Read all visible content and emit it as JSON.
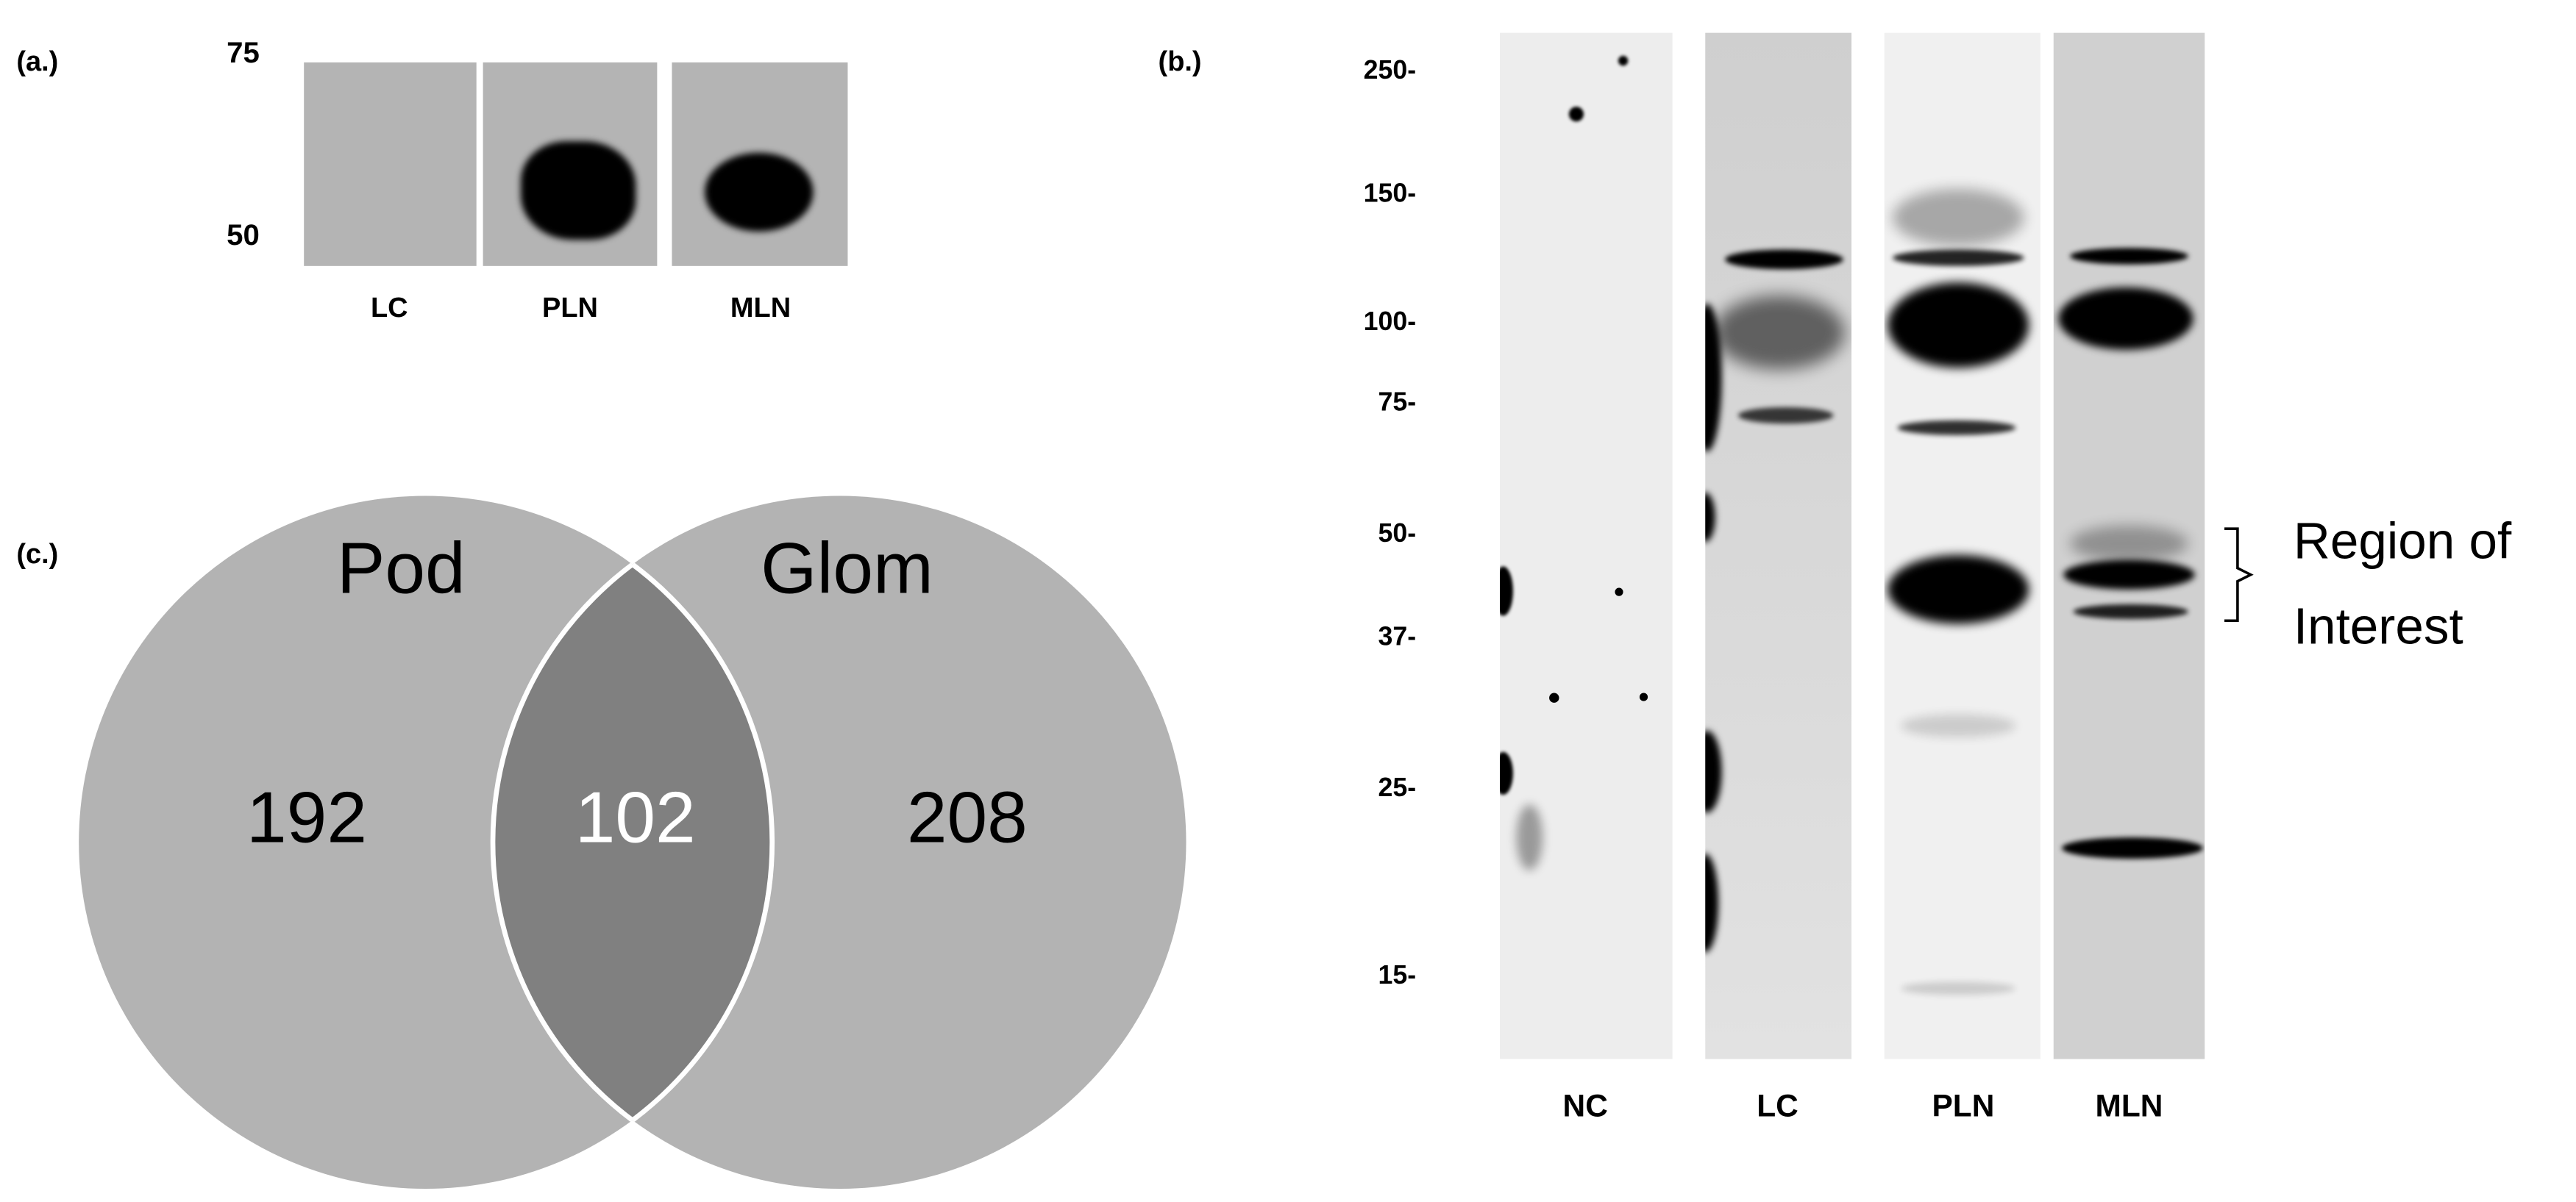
{
  "panel_a": {
    "label": "(a.)",
    "markers": [
      "75",
      "50"
    ],
    "lanes": [
      "LC",
      "PLN",
      "MLN"
    ]
  },
  "panel_b": {
    "label": "(b.)",
    "markers": [
      "250-",
      "150-",
      "100-",
      "75-",
      "50-",
      "37-",
      "25-",
      "15-"
    ],
    "lanes": [
      "NC",
      "LC",
      "PLN",
      "MLN"
    ],
    "annotation": {
      "line1": "Region of",
      "line2": "Interest"
    }
  },
  "panel_c": {
    "label": "(c.)",
    "sets": [
      {
        "name": "Pod",
        "unique": "192"
      },
      {
        "name": "Glom",
        "unique": "208"
      }
    ],
    "overlap": "102",
    "colors": {
      "circle": "#b3b3b3",
      "overlap": "#808080",
      "overlap_text": "#ffffff"
    }
  }
}
